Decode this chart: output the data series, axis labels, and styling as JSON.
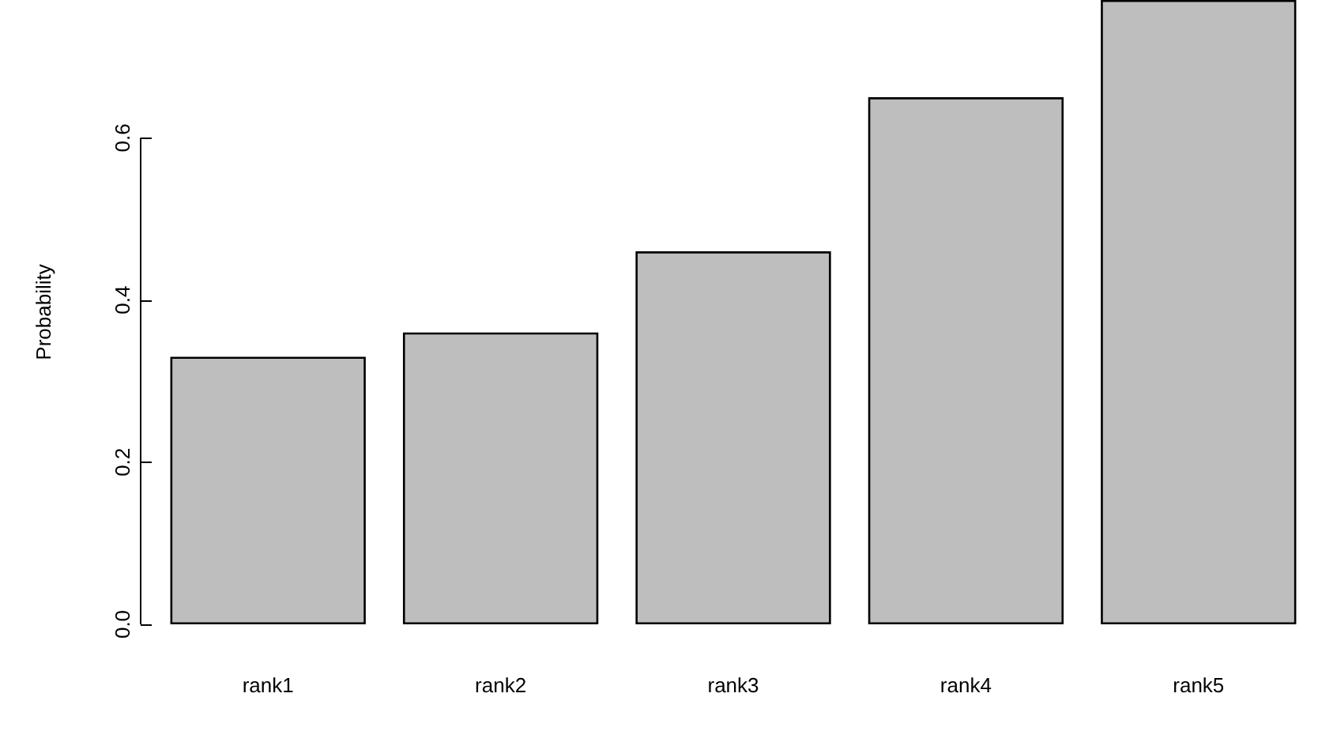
{
  "chart_data": {
    "type": "bar",
    "ylabel": "Probability",
    "categories": [
      "rank1",
      "rank2",
      "rank3",
      "rank4",
      "rank5"
    ],
    "values": [
      0.33,
      0.36,
      0.46,
      0.65,
      0.77
    ],
    "color": "#bebebe",
    "ylim": [
      0,
      0.77
    ],
    "yticks": [
      {
        "value": 0,
        "label": "0.0"
      },
      0.2,
      0.4,
      0.6
    ],
    "grid": false
  }
}
